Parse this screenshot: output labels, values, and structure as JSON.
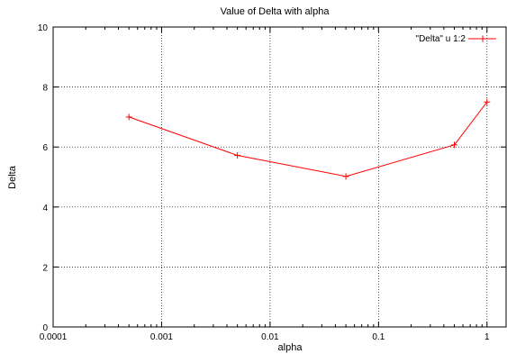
{
  "chart_data": {
    "type": "line",
    "title": "Value of Delta with alpha",
    "xlabel": "alpha",
    "ylabel": "Delta",
    "xscale": "log",
    "xlim": [
      0.0001,
      1.5
    ],
    "ylim": [
      0,
      10
    ],
    "xticks": [
      0.0001,
      0.001,
      0.01,
      0.1,
      1
    ],
    "xtick_labels": [
      "0.0001",
      "0.001",
      "0.01",
      "0.1",
      "1"
    ],
    "yticks": [
      0,
      2,
      4,
      6,
      8,
      10
    ],
    "ytick_labels": [
      "0",
      "2",
      "4",
      "6",
      "8",
      "10"
    ],
    "grid": true,
    "legend_position": "top-right",
    "series": [
      {
        "name": "\"Delta\" u 1:2",
        "color": "#ff0000",
        "marker": "plus",
        "x": [
          0.0005,
          0.005,
          0.05,
          0.5,
          1
        ],
        "y": [
          7.0,
          5.72,
          5.02,
          6.07,
          7.5
        ]
      }
    ]
  }
}
